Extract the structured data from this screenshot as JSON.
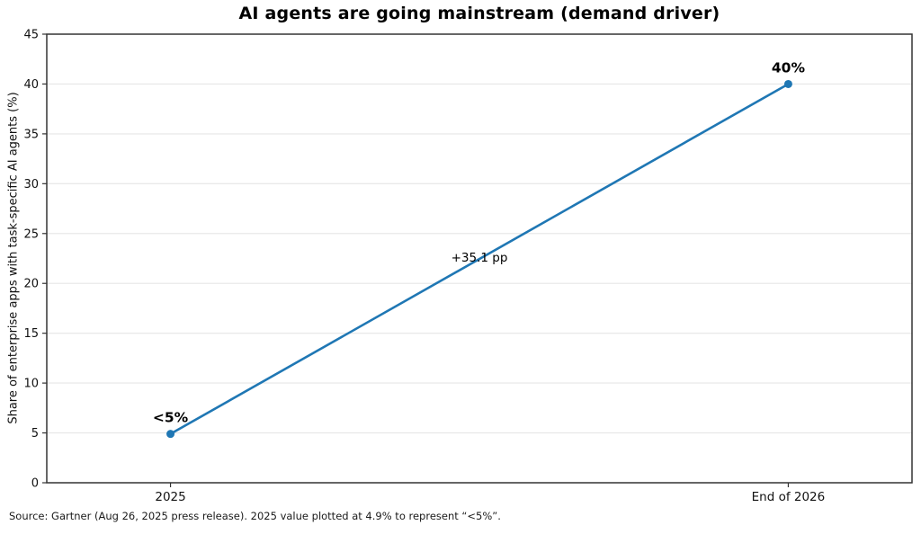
{
  "figure": {
    "footnote": "Source: Gartner (Aug 26, 2025 press release). 2025 value plotted at 4.9% to represent “<5%”."
  },
  "chart_data": {
    "type": "line",
    "title": "AI agents are going mainstream (demand driver)",
    "categories": [
      "2025",
      "End of 2026"
    ],
    "values": [
      4.9,
      40
    ],
    "point_labels": [
      "<5%",
      "40%"
    ],
    "annotation": "+35.1 pp",
    "xlabel": "",
    "ylabel": "Share of enterprise apps with task-specific AI agents (%)",
    "ylim": [
      0,
      45
    ],
    "ytick_step": 5,
    "yticks": [
      0,
      5,
      10,
      15,
      20,
      25,
      30,
      35,
      40,
      45
    ],
    "grid": "horizontal",
    "legend": "none",
    "colors": {
      "line": "#1f77b4",
      "marker": "#1f77b4",
      "gridline": "#e6e6e6",
      "spine": "#333333",
      "text": "#111111"
    },
    "x_margin_frac": 0.143
  }
}
